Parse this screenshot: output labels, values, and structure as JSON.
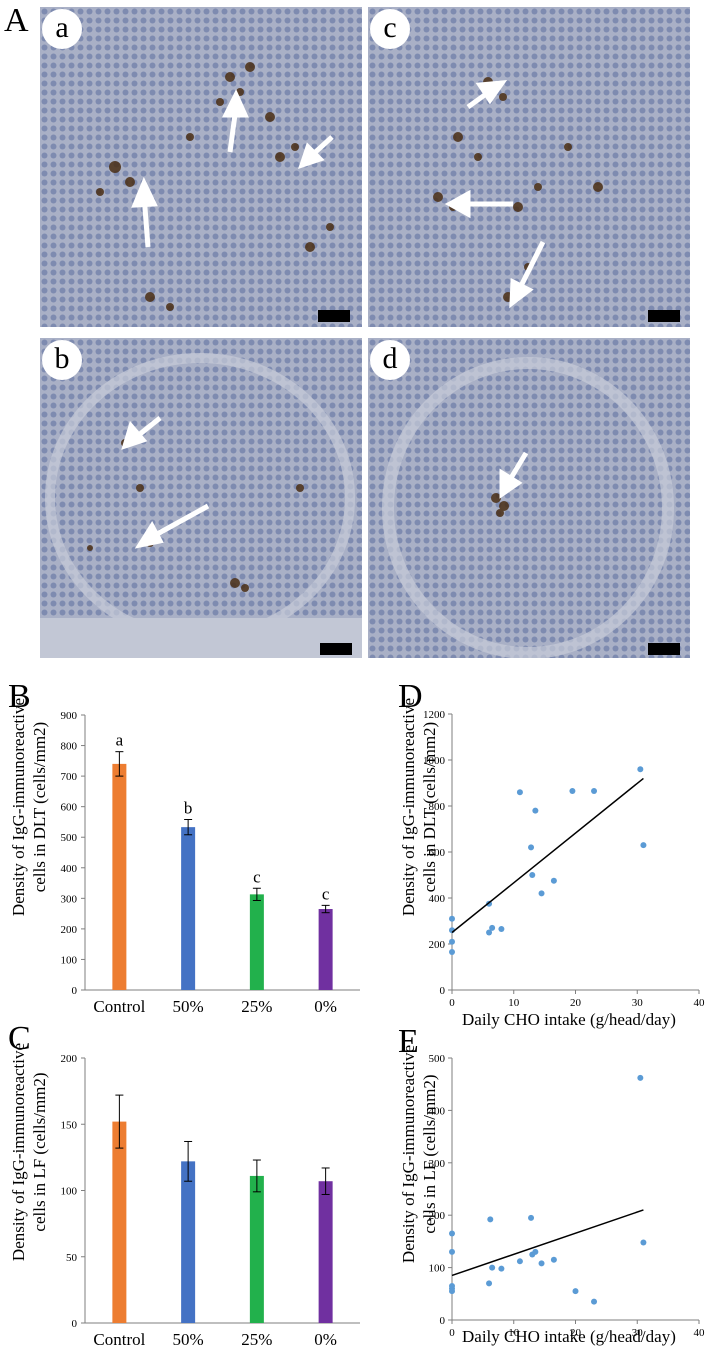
{
  "figure": {
    "panel_A_letter": "A",
    "micrographs": [
      {
        "id": "a",
        "label": "a"
      },
      {
        "id": "c",
        "label": "c"
      },
      {
        "id": "b",
        "label": "b"
      },
      {
        "id": "d",
        "label": "d"
      }
    ],
    "panel_B_letter": "B",
    "panel_C_letter": "C",
    "panel_D_letter": "D",
    "panel_E_letter": "E",
    "colors": {
      "control": "#ed7d31",
      "p50": "#4472c4",
      "p25": "#22b14c",
      "p0": "#7030a0",
      "scatter": "#5b9bd5",
      "tissue": "#8f9ab8",
      "stain": "#5a3a1e"
    }
  },
  "chart_data": [
    {
      "panel": "B",
      "type": "bar",
      "categories": [
        "Control",
        "50%",
        "25%",
        "0%"
      ],
      "values": [
        740,
        533,
        313,
        265
      ],
      "errors": [
        40,
        25,
        20,
        12
      ],
      "letters": [
        "a",
        "b",
        "c",
        "c"
      ],
      "ylabel_line1": "Density of IgG-immunoreactive",
      "ylabel_line2": "cells in DLT (cells/mm2)",
      "ylim": [
        0,
        900
      ],
      "yticks": [
        "0",
        "100",
        "200",
        "300",
        "400",
        "500",
        "600",
        "700",
        "800",
        "900"
      ]
    },
    {
      "panel": "C",
      "type": "bar",
      "categories": [
        "Control",
        "50%",
        "25%",
        "0%"
      ],
      "values": [
        152,
        122,
        111,
        107
      ],
      "errors": [
        20,
        15,
        12,
        10
      ],
      "ylabel_line1": "Density of IgG-immunoreactive",
      "ylabel_line2": "cells in LF (cells/mm2)",
      "ylim": [
        0,
        200
      ],
      "yticks": [
        "0",
        "50",
        "100",
        "150",
        "200"
      ]
    },
    {
      "panel": "D",
      "type": "scatter",
      "xlabel": "Daily CHO intake (g/head/day)",
      "ylabel_line1": "Density of IgG-immunoreactive",
      "ylabel_line2": "cells in DLT (cells/mm2)",
      "xlim": [
        0,
        40
      ],
      "ylim": [
        0,
        1200
      ],
      "xticks": [
        "0",
        "10",
        "20",
        "30",
        "40"
      ],
      "yticks": [
        "0",
        "200",
        "400",
        "600",
        "800",
        "1000",
        "1200"
      ],
      "points": [
        [
          0,
          165
        ],
        [
          0,
          210
        ],
        [
          0,
          260
        ],
        [
          0,
          310
        ],
        [
          6,
          250
        ],
        [
          6,
          375
        ],
        [
          6.5,
          270
        ],
        [
          8,
          265
        ],
        [
          11,
          860
        ],
        [
          12.8,
          620
        ],
        [
          13,
          500
        ],
        [
          13.5,
          780
        ],
        [
          14.5,
          420
        ],
        [
          16.5,
          475
        ],
        [
          19.5,
          865
        ],
        [
          23,
          865
        ],
        [
          30.5,
          960
        ],
        [
          31,
          630
        ]
      ],
      "trendline": [
        [
          0,
          250
        ],
        [
          31,
          920
        ]
      ]
    },
    {
      "panel": "E",
      "type": "scatter",
      "xlabel": "Daily CHO intake (g/head/day)",
      "ylabel_line1": "Density of IgG-immunoreactive",
      "ylabel_line2": "cells in LF (cells/mm2)",
      "xlim": [
        0,
        40
      ],
      "ylim": [
        0,
        500
      ],
      "xticks": [
        "0",
        "10",
        "20",
        "30",
        "40"
      ],
      "yticks": [
        "0",
        "100",
        "200",
        "300",
        "400",
        "500"
      ],
      "points": [
        [
          0,
          55
        ],
        [
          0,
          60
        ],
        [
          0,
          65
        ],
        [
          0,
          130
        ],
        [
          0,
          165
        ],
        [
          6,
          70
        ],
        [
          6.2,
          192
        ],
        [
          6.5,
          100
        ],
        [
          8,
          98
        ],
        [
          11,
          112
        ],
        [
          12.8,
          195
        ],
        [
          13,
          125
        ],
        [
          13.5,
          130
        ],
        [
          14.5,
          108
        ],
        [
          16.5,
          115
        ],
        [
          20,
          55
        ],
        [
          23,
          35
        ],
        [
          30.5,
          462
        ],
        [
          31,
          148
        ]
      ],
      "trendline": [
        [
          0,
          85
        ],
        [
          31,
          210
        ]
      ]
    }
  ]
}
